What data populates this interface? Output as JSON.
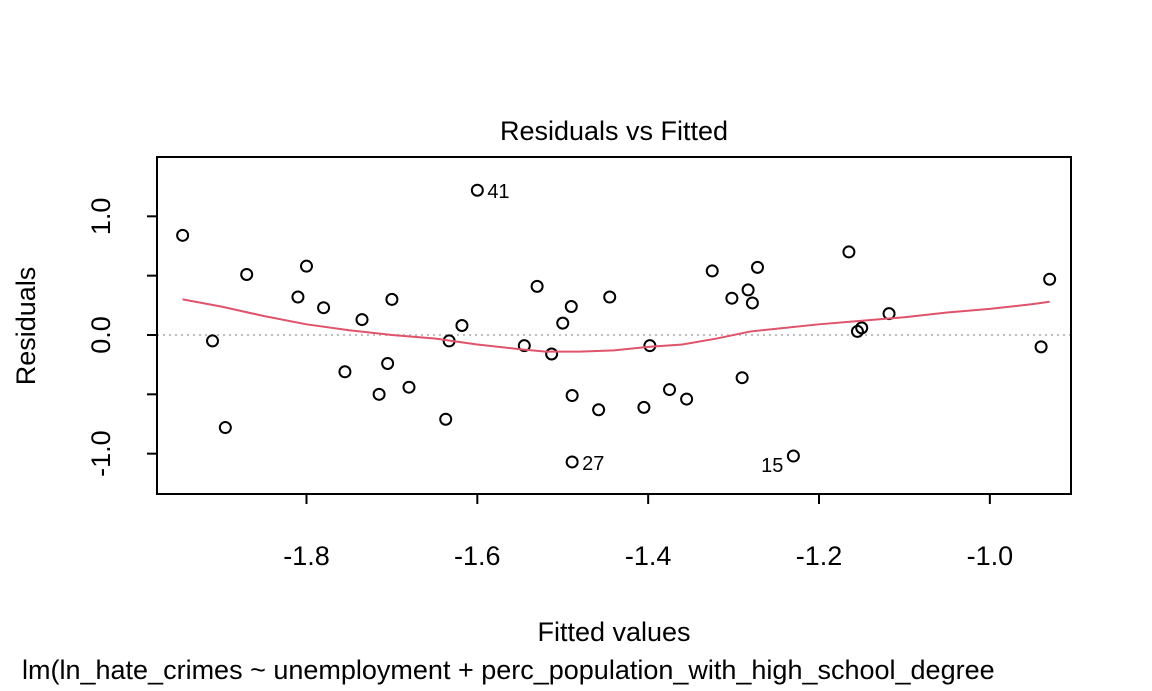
{
  "chart_data": {
    "type": "scatter",
    "title": "Residuals vs Fitted",
    "xlabel": "Fitted values",
    "ylabel": "Residuals",
    "caption": "lm(ln_hate_crimes ~ unemployment + perc_population_with_high_school_degree",
    "xlim": [
      -1.975,
      -0.905
    ],
    "ylim": [
      -1.34,
      1.5
    ],
    "xticks": [
      -1.8,
      -1.6,
      -1.4,
      -1.2,
      -1.0
    ],
    "xtick_labels": [
      "-1.8",
      "-1.6",
      "-1.4",
      "-1.2",
      "-1.0"
    ],
    "yticks": [
      -1.0,
      -0.5,
      0.0,
      0.5,
      1.0
    ],
    "ytick_labels": [
      "-1.0",
      "",
      "0.0",
      "",
      "1.0"
    ],
    "zero_line": 0.0,
    "points": [
      {
        "x": -1.945,
        "y": 0.84
      },
      {
        "x": -1.91,
        "y": -0.05
      },
      {
        "x": -1.895,
        "y": -0.78
      },
      {
        "x": -1.87,
        "y": 0.51
      },
      {
        "x": -1.81,
        "y": 0.32
      },
      {
        "x": -1.8,
        "y": 0.58
      },
      {
        "x": -1.78,
        "y": 0.23
      },
      {
        "x": -1.755,
        "y": -0.31
      },
      {
        "x": -1.735,
        "y": 0.13
      },
      {
        "x": -1.715,
        "y": -0.5
      },
      {
        "x": -1.705,
        "y": -0.24
      },
      {
        "x": -1.7,
        "y": 0.3
      },
      {
        "x": -1.68,
        "y": -0.44
      },
      {
        "x": -1.637,
        "y": -0.71
      },
      {
        "x": -1.633,
        "y": -0.05
      },
      {
        "x": -1.618,
        "y": 0.08
      },
      {
        "x": -1.6,
        "y": 1.22
      },
      {
        "x": -1.545,
        "y": -0.09
      },
      {
        "x": -1.53,
        "y": 0.41
      },
      {
        "x": -1.513,
        "y": -0.16
      },
      {
        "x": -1.5,
        "y": 0.1
      },
      {
        "x": -1.49,
        "y": 0.24
      },
      {
        "x": -1.489,
        "y": -0.51
      },
      {
        "x": -1.489,
        "y": -1.07
      },
      {
        "x": -1.458,
        "y": -0.63
      },
      {
        "x": -1.445,
        "y": 0.32
      },
      {
        "x": -1.405,
        "y": -0.61
      },
      {
        "x": -1.398,
        "y": -0.09
      },
      {
        "x": -1.375,
        "y": -0.46
      },
      {
        "x": -1.355,
        "y": -0.54
      },
      {
        "x": -1.325,
        "y": 0.54
      },
      {
        "x": -1.302,
        "y": 0.31
      },
      {
        "x": -1.29,
        "y": -0.36
      },
      {
        "x": -1.283,
        "y": 0.38
      },
      {
        "x": -1.278,
        "y": 0.27
      },
      {
        "x": -1.272,
        "y": 0.57
      },
      {
        "x": -1.23,
        "y": -1.02
      },
      {
        "x": -1.165,
        "y": 0.7
      },
      {
        "x": -1.155,
        "y": 0.03
      },
      {
        "x": -1.15,
        "y": 0.06
      },
      {
        "x": -1.118,
        "y": 0.18
      },
      {
        "x": -0.94,
        "y": -0.1
      },
      {
        "x": -0.93,
        "y": 0.47
      }
    ],
    "labeled_points": [
      {
        "label": "41",
        "x": -1.6,
        "y": 1.22,
        "side": "right"
      },
      {
        "label": "27",
        "x": -1.489,
        "y": -1.07,
        "side": "right"
      },
      {
        "label": "15",
        "x": -1.23,
        "y": -1.02,
        "side": "left"
      }
    ],
    "smooth_line": {
      "color": "#DF536B",
      "x": [
        -1.945,
        -1.9,
        -1.85,
        -1.8,
        -1.75,
        -1.7,
        -1.65,
        -1.6,
        -1.55,
        -1.52,
        -1.48,
        -1.44,
        -1.4,
        -1.36,
        -1.32,
        -1.28,
        -1.24,
        -1.2,
        -1.15,
        -1.1,
        -1.05,
        -1.0,
        -0.95,
        -0.93
      ],
      "y": [
        0.3,
        0.24,
        0.16,
        0.09,
        0.04,
        0.0,
        -0.03,
        -0.08,
        -0.12,
        -0.14,
        -0.14,
        -0.13,
        -0.1,
        -0.08,
        -0.03,
        0.03,
        0.06,
        0.09,
        0.12,
        0.15,
        0.19,
        0.22,
        0.26,
        0.28
      ]
    }
  }
}
